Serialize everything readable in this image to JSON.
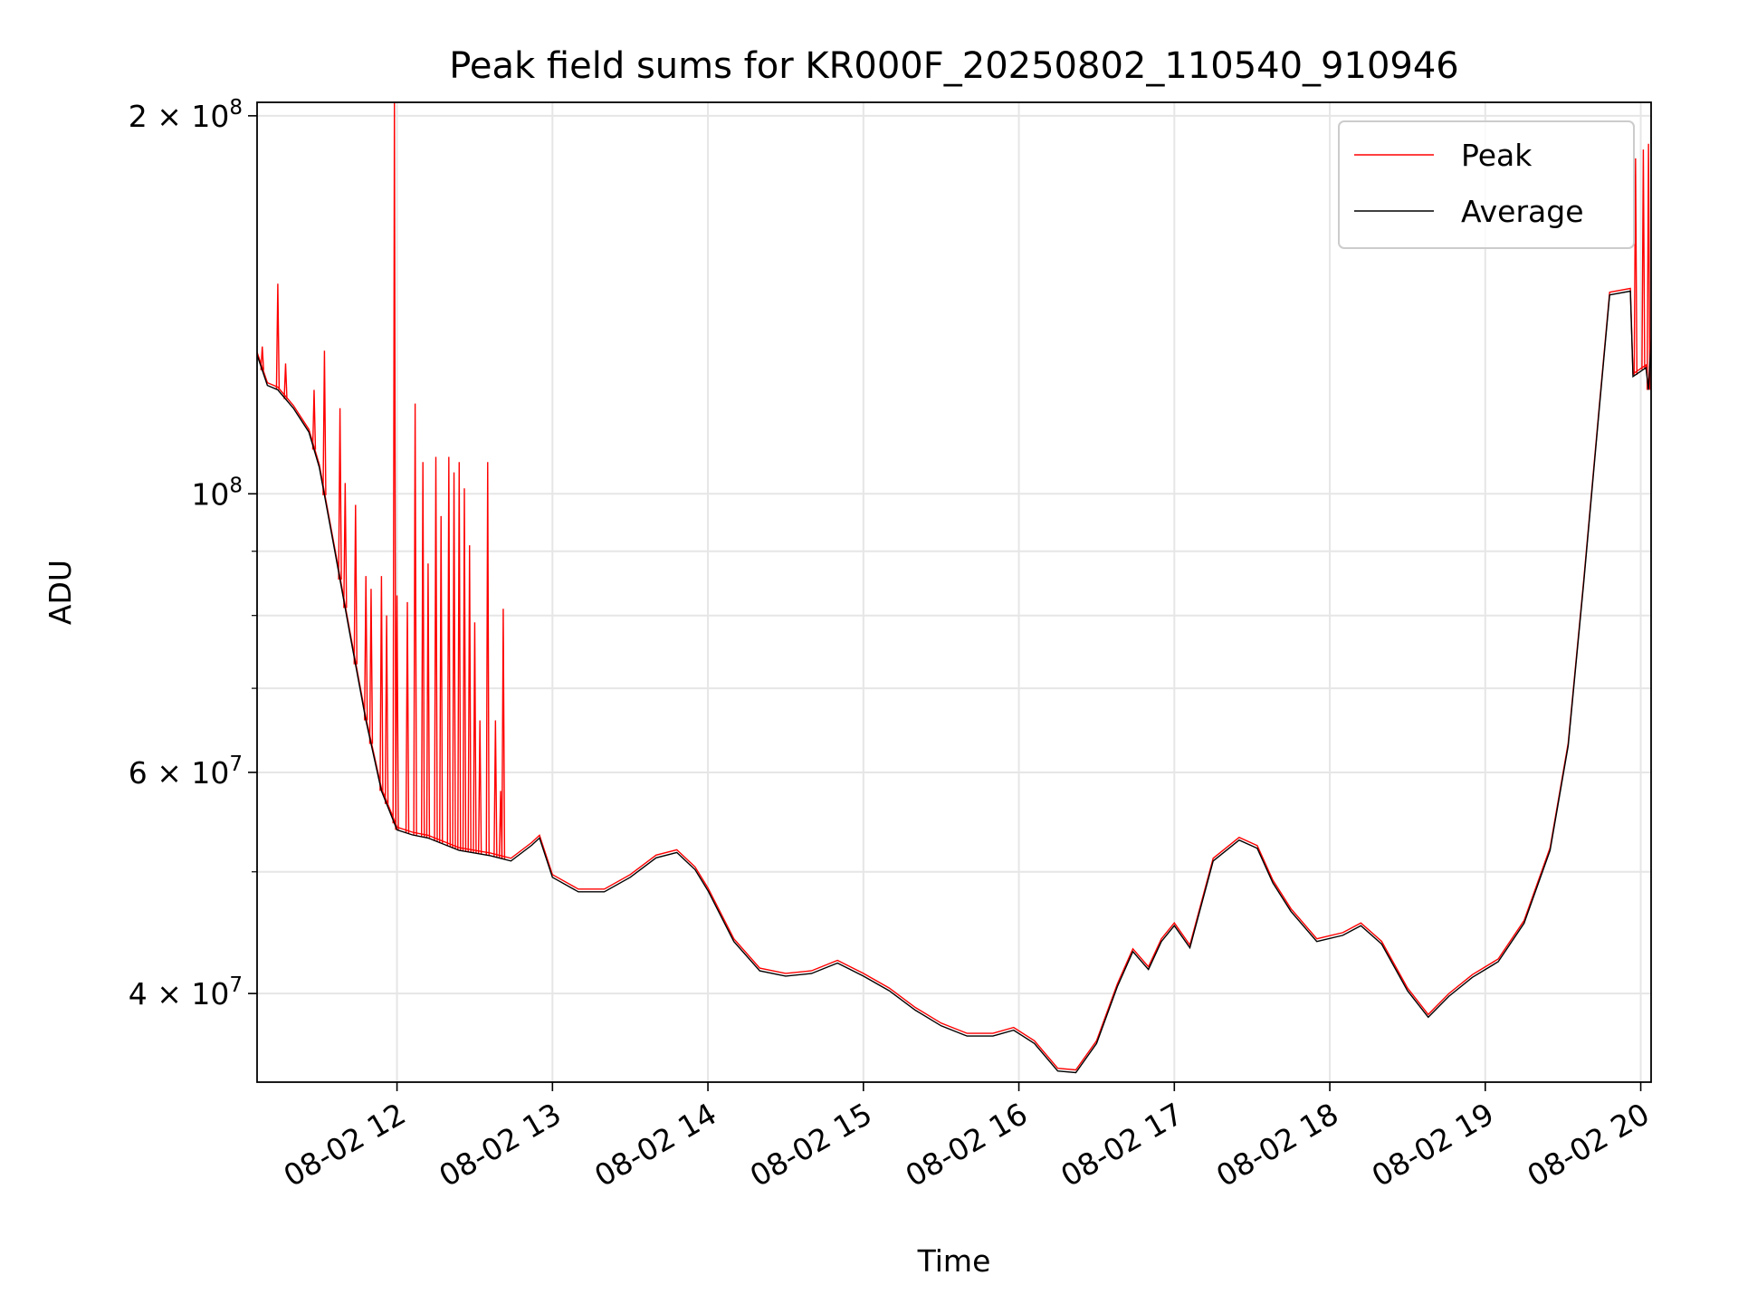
{
  "chart_data": {
    "type": "line",
    "title": "Peak field sums for KR000F_20250802_110540_910946",
    "xlabel": "Time",
    "ylabel": "ADU",
    "yscale": "log",
    "ylim": [
      34000000,
      205000000
    ],
    "xlim": [
      "08-02 11:06",
      "08-02 20:04"
    ],
    "grid": true,
    "legend_position": "top-right",
    "x_ticks": [
      "08-02 12",
      "08-02 13",
      "08-02 14",
      "08-02 15",
      "08-02 16",
      "08-02 17",
      "08-02 18",
      "08-02 19",
      "08-02 20"
    ],
    "y_tick_labels": [
      {
        "label": "4 × 10^7",
        "base": "4 × 10",
        "exp": "7",
        "value": 40000000
      },
      {
        "label": "6 × 10^7",
        "base": "6 × 10",
        "exp": "7",
        "value": 60000000
      },
      {
        "label": "10^8",
        "base": "10",
        "exp": "8",
        "value": 100000000
      },
      {
        "label": "2 × 10^8",
        "base": "2 × 10",
        "exp": "8",
        "value": 200000000
      }
    ],
    "y_minor_ticks": [
      50000000,
      70000000,
      80000000,
      90000000
    ],
    "average_points": [
      [
        "08-02 11:06",
        129000000
      ],
      [
        "08-02 11:10",
        122000000
      ],
      [
        "08-02 11:14",
        121000000
      ],
      [
        "08-02 11:20",
        117000000
      ],
      [
        "08-02 11:26",
        112000000
      ],
      [
        "08-02 11:30",
        105000000
      ],
      [
        "08-02 11:36",
        90000000
      ],
      [
        "08-02 11:42",
        77000000
      ],
      [
        "08-02 11:48",
        66000000
      ],
      [
        "08-02 11:54",
        58000000
      ],
      [
        "08-02 12:00",
        54000000
      ],
      [
        "08-02 12:06",
        53500000
      ],
      [
        "08-02 12:12",
        53200000
      ],
      [
        "08-02 12:24",
        52000000
      ],
      [
        "08-02 12:36",
        51500000
      ],
      [
        "08-02 12:44",
        51000000
      ],
      [
        "08-02 12:52",
        52500000
      ],
      [
        "08-02 12:55",
        53200000
      ],
      [
        "08-02 13:00",
        49500000
      ],
      [
        "08-02 13:10",
        48200000
      ],
      [
        "08-02 13:20",
        48200000
      ],
      [
        "08-02 13:30",
        49500000
      ],
      [
        "08-02 13:40",
        51300000
      ],
      [
        "08-02 13:48",
        51800000
      ],
      [
        "08-02 13:55",
        50200000
      ],
      [
        "08-02 14:00",
        48300000
      ],
      [
        "08-02 14:10",
        44000000
      ],
      [
        "08-02 14:20",
        41700000
      ],
      [
        "08-02 14:30",
        41300000
      ],
      [
        "08-02 14:40",
        41500000
      ],
      [
        "08-02 14:50",
        42300000
      ],
      [
        "08-02 15:00",
        41300000
      ],
      [
        "08-02 15:10",
        40200000
      ],
      [
        "08-02 15:20",
        38800000
      ],
      [
        "08-02 15:30",
        37700000
      ],
      [
        "08-02 15:40",
        37000000
      ],
      [
        "08-02 15:50",
        37000000
      ],
      [
        "08-02 15:58",
        37400000
      ],
      [
        "08-02 16:06",
        36500000
      ],
      [
        "08-02 16:15",
        34700000
      ],
      [
        "08-02 16:22",
        34600000
      ],
      [
        "08-02 16:30",
        36500000
      ],
      [
        "08-02 16:38",
        40500000
      ],
      [
        "08-02 16:44",
        43200000
      ],
      [
        "08-02 16:50",
        41800000
      ],
      [
        "08-02 16:55",
        44000000
      ],
      [
        "08-02 17:00",
        45300000
      ],
      [
        "08-02 17:06",
        43500000
      ],
      [
        "08-02 17:15",
        51000000
      ],
      [
        "08-02 17:25",
        53000000
      ],
      [
        "08-02 17:32",
        52200000
      ],
      [
        "08-02 17:38",
        49000000
      ],
      [
        "08-02 17:45",
        46500000
      ],
      [
        "08-02 17:55",
        44000000
      ],
      [
        "08-02 18:05",
        44500000
      ],
      [
        "08-02 18:12",
        45300000
      ],
      [
        "08-02 18:20",
        43800000
      ],
      [
        "08-02 18:30",
        40200000
      ],
      [
        "08-02 18:38",
        38300000
      ],
      [
        "08-02 18:46",
        39800000
      ],
      [
        "08-02 18:55",
        41200000
      ],
      [
        "08-02 19:05",
        42400000
      ],
      [
        "08-02 19:15",
        45500000
      ],
      [
        "08-02 19:25",
        52000000
      ],
      [
        "08-02 19:32",
        63000000
      ],
      [
        "08-02 19:38",
        85000000
      ],
      [
        "08-02 19:44",
        117000000
      ],
      [
        "08-02 19:48",
        144000000
      ],
      [
        "08-02 19:56",
        145000000
      ],
      [
        "08-02 19:57",
        124000000
      ],
      [
        "08-02 20:02",
        126000000
      ],
      [
        "08-02 20:03",
        121000000
      ],
      [
        "08-02 20:04",
        132000000
      ]
    ],
    "peak_spikes": [
      [
        "08-02 11:08",
        131000000
      ],
      [
        "08-02 11:14",
        147000000
      ],
      [
        "08-02 11:17",
        127000000
      ],
      [
        "08-02 11:28",
        121000000
      ],
      [
        "08-02 11:32",
        130000000
      ],
      [
        "08-02 11:38",
        117000000
      ],
      [
        "08-02 11:40",
        102000000
      ],
      [
        "08-02 11:44",
        98000000
      ],
      [
        "08-02 11:48",
        86000000
      ],
      [
        "08-02 11:50",
        84000000
      ],
      [
        "08-02 11:54",
        86000000
      ],
      [
        "08-02 11:56",
        80000000
      ],
      [
        "08-02 11:59",
        205000000
      ],
      [
        "08-02 12:00",
        83000000
      ],
      [
        "08-02 12:04",
        82000000
      ],
      [
        "08-02 12:07",
        118000000
      ],
      [
        "08-02 12:10",
        106000000
      ],
      [
        "08-02 12:12",
        88000000
      ],
      [
        "08-02 12:15",
        107000000
      ],
      [
        "08-02 12:17",
        96000000
      ],
      [
        "08-02 12:20",
        107000000
      ],
      [
        "08-02 12:22",
        104000000
      ],
      [
        "08-02 12:24",
        106000000
      ],
      [
        "08-02 12:26",
        101000000
      ],
      [
        "08-02 12:28",
        91000000
      ],
      [
        "08-02 12:30",
        79000000
      ],
      [
        "08-02 12:32",
        66000000
      ],
      [
        "08-02 12:35",
        106000000
      ],
      [
        "08-02 12:38",
        66000000
      ],
      [
        "08-02 12:40",
        58000000
      ],
      [
        "08-02 12:41",
        81000000
      ],
      [
        "08-02 19:58",
        185000000
      ],
      [
        "08-02 20:01",
        188000000
      ],
      [
        "08-02 20:03",
        190000000
      ]
    ],
    "series": [
      {
        "name": "Peak",
        "color": "#ff0000",
        "line_width": 1
      },
      {
        "name": "Average",
        "color": "#000000",
        "line_width": 1
      }
    ]
  }
}
